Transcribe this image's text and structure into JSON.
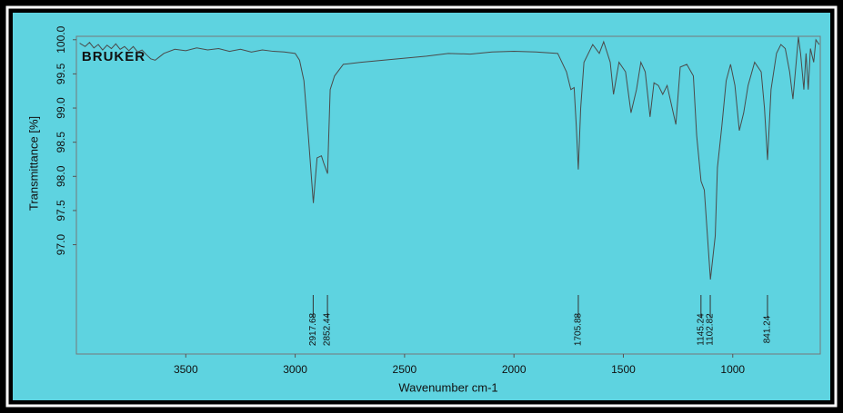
{
  "chart_data": {
    "type": "line",
    "logo": "BRUKER",
    "xlabel": "Wavenumber cm-1",
    "ylabel": "Transmittance [%]",
    "xlim": [
      4000,
      600
    ],
    "ylim": [
      95.4,
      100.05
    ],
    "xticks": [
      3500,
      3000,
      2500,
      2000,
      1500,
      1000
    ],
    "yticks": [
      {
        "value": 97,
        "label": "97.0"
      },
      97.5,
      {
        "value": 98,
        "label": "98.0"
      },
      98.5,
      {
        "value": 99,
        "label": "99.0"
      },
      99.5,
      {
        "value": 100,
        "label": "100.0"
      }
    ],
    "x": [
      3985,
      3960,
      3940,
      3920,
      3900,
      3880,
      3860,
      3840,
      3820,
      3800,
      3780,
      3760,
      3740,
      3720,
      3700,
      3680,
      3660,
      3640,
      3620,
      3600,
      3550,
      3500,
      3450,
      3400,
      3350,
      3300,
      3250,
      3200,
      3150,
      3100,
      3050,
      3000,
      2980,
      2960,
      2940,
      2917,
      2900,
      2880,
      2870,
      2852,
      2840,
      2820,
      2780,
      2700,
      2600,
      2500,
      2400,
      2300,
      2200,
      2100,
      2000,
      1900,
      1800,
      1760,
      1740,
      1725,
      1715,
      1706,
      1695,
      1680,
      1640,
      1610,
      1590,
      1560,
      1545,
      1520,
      1490,
      1465,
      1440,
      1420,
      1400,
      1378,
      1360,
      1340,
      1320,
      1300,
      1260,
      1240,
      1210,
      1180,
      1165,
      1145,
      1130,
      1102,
      1080,
      1070,
      1050,
      1030,
      1010,
      990,
      970,
      950,
      930,
      900,
      870,
      855,
      841,
      825,
      800,
      780,
      760,
      740,
      725,
      710,
      700,
      690,
      675,
      665,
      655,
      645,
      630,
      620,
      605
    ],
    "series": [
      {
        "color": "#4a4a4a",
        "values": [
          99.95,
          99.9,
          99.96,
          99.88,
          99.93,
          99.85,
          99.92,
          99.87,
          99.94,
          99.86,
          99.9,
          99.84,
          99.9,
          99.82,
          99.85,
          99.78,
          99.72,
          99.7,
          99.75,
          99.8,
          99.86,
          99.84,
          99.88,
          99.85,
          99.87,
          99.83,
          99.86,
          99.82,
          99.85,
          99.83,
          99.82,
          99.8,
          99.7,
          99.4,
          98.6,
          97.61,
          98.27,
          98.3,
          98.2,
          98.04,
          99.27,
          99.47,
          99.64,
          99.67,
          99.7,
          99.73,
          99.76,
          99.8,
          99.79,
          99.82,
          99.83,
          99.82,
          99.8,
          99.53,
          99.27,
          99.3,
          98.73,
          98.1,
          99.0,
          99.67,
          99.93,
          99.8,
          99.97,
          99.67,
          99.2,
          99.67,
          99.53,
          98.93,
          99.27,
          99.67,
          99.53,
          98.87,
          99.37,
          99.33,
          99.2,
          99.33,
          98.76,
          99.6,
          99.64,
          99.47,
          98.6,
          97.93,
          97.8,
          96.49,
          97.13,
          98.13,
          98.73,
          99.4,
          99.64,
          99.33,
          98.67,
          98.93,
          99.33,
          99.67,
          99.53,
          99.0,
          98.24,
          99.27,
          99.8,
          99.93,
          99.87,
          99.53,
          99.13,
          99.67,
          100.04,
          99.8,
          99.27,
          99.8,
          99.27,
          99.87,
          99.67,
          100.0,
          99.93
        ]
      }
    ],
    "peaks": [
      2917.68,
      2852.44,
      1705.88,
      1145.24,
      1102.82,
      841.24
    ]
  }
}
